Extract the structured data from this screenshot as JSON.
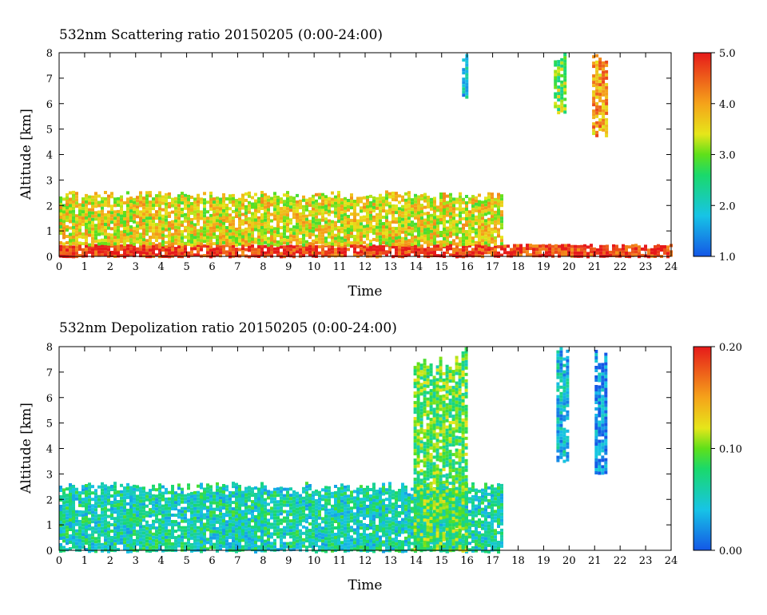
{
  "chart_data": [
    {
      "type": "heatmap",
      "title": "532nm Scattering ratio  20150205 (0:00-24:00)",
      "xlabel": "Time",
      "ylabel": "Altitude [km]",
      "xlim": [
        0,
        24
      ],
      "ylim": [
        0,
        8
      ],
      "xticks": [
        "0",
        "1",
        "2",
        "3",
        "4",
        "5",
        "6",
        "7",
        "8",
        "9",
        "10",
        "11",
        "12",
        "13",
        "14",
        "15",
        "16",
        "17",
        "18",
        "19",
        "20",
        "21",
        "22",
        "23",
        "24"
      ],
      "yticks": [
        "0",
        "1",
        "2",
        "3",
        "4",
        "5",
        "6",
        "7",
        "8"
      ],
      "colorbar": {
        "min": 1.0,
        "max": 5.0,
        "ticks": [
          "1.0",
          "2.0",
          "3.0",
          "4.0",
          "5.0"
        ]
      },
      "features": [
        {
          "kind": "surface-layer",
          "x": [
            0,
            24
          ],
          "y": [
            0,
            0.5
          ],
          "value": 4.8
        },
        {
          "kind": "boundary-layer-cloud",
          "x": [
            0,
            17.3
          ],
          "y": [
            0.5,
            2.6
          ],
          "value": 3.5
        },
        {
          "kind": "high-cloud",
          "x": [
            19.4,
            19.8
          ],
          "y": [
            5.7,
            8
          ],
          "value": 3.0
        },
        {
          "kind": "high-cloud",
          "x": [
            20.9,
            21.5
          ],
          "y": [
            4.8,
            8
          ],
          "value": 4.0
        },
        {
          "kind": "high-cloud",
          "x": [
            15.8,
            16.0
          ],
          "y": [
            6.3,
            8
          ],
          "value": 1.8
        }
      ]
    },
    {
      "type": "heatmap",
      "title": "532nm Depolization ratio  20150205 (0:00-24:00)",
      "xlabel": "Time",
      "ylabel": "Altitude [km]",
      "xlim": [
        0,
        24
      ],
      "ylim": [
        0,
        8
      ],
      "xticks": [
        "0",
        "1",
        "2",
        "3",
        "4",
        "5",
        "6",
        "7",
        "8",
        "9",
        "10",
        "11",
        "12",
        "13",
        "14",
        "15",
        "16",
        "17",
        "18",
        "19",
        "20",
        "21",
        "22",
        "23",
        "24"
      ],
      "yticks": [
        "0",
        "1",
        "2",
        "3",
        "4",
        "5",
        "6",
        "7",
        "8"
      ],
      "colorbar": {
        "min": 0.0,
        "max": 0.2,
        "ticks": [
          "0.00",
          "0.10",
          "0.20"
        ]
      },
      "features": [
        {
          "kind": "boundary-layer",
          "x": [
            0,
            17.3
          ],
          "y": [
            0,
            2.7
          ],
          "value": 0.06
        },
        {
          "kind": "precip-column",
          "x": [
            13.9,
            16.0
          ],
          "y": [
            0,
            8
          ],
          "value": 0.09
        },
        {
          "kind": "ice-cloud",
          "x": [
            21.0,
            21.5
          ],
          "y": [
            3.0,
            8
          ],
          "value": 0.02
        },
        {
          "kind": "ice-cloud",
          "x": [
            19.5,
            20.0
          ],
          "y": [
            3.5,
            8
          ],
          "value": 0.04
        }
      ]
    }
  ]
}
